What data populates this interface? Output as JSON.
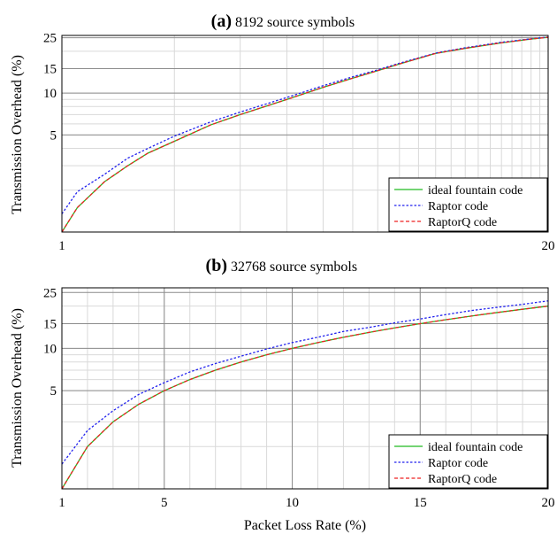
{
  "chart_data": [
    {
      "type": "line",
      "panel_label": "(a)",
      "title": "8192 source symbols",
      "xlabel": "",
      "ylabel": "Transmission Overhead (%)",
      "xscale": "log",
      "yscale": "log",
      "xlim": [
        1,
        20
      ],
      "ylim": [
        1,
        26
      ],
      "xticks": [
        1,
        20
      ],
      "yticks": [
        5,
        10,
        15,
        25
      ],
      "grid": true,
      "legend_position": "bottom-right",
      "x": [
        1,
        1.1,
        1.3,
        1.5,
        1.7,
        2,
        2.5,
        3,
        4,
        5,
        6,
        7,
        8,
        10,
        12,
        15,
        18,
        20
      ],
      "series": [
        {
          "name": "ideal fountain code",
          "color": "#22bb22",
          "dash": "solid",
          "values": [
            1.0,
            1.5,
            2.3,
            3.0,
            3.7,
            4.5,
            5.9,
            7.0,
            9.0,
            11.0,
            12.8,
            14.5,
            16.2,
            19.3,
            21.0,
            23.0,
            24.5,
            25.2
          ]
        },
        {
          "name": "Raptor code",
          "color": "#2222ee",
          "dash": "dotted",
          "values": [
            1.35,
            1.95,
            2.6,
            3.4,
            4.0,
            4.9,
            6.2,
            7.3,
            9.3,
            11.3,
            13.1,
            14.7,
            16.4,
            19.4,
            21.2,
            23.2,
            24.6,
            25.3
          ]
        },
        {
          "name": "RaptorQ code",
          "color": "#ee2222",
          "dash": "dashed",
          "values": [
            1.0,
            1.5,
            2.3,
            3.0,
            3.7,
            4.5,
            5.9,
            7.0,
            9.0,
            11.0,
            12.8,
            14.5,
            16.2,
            19.3,
            21.0,
            23.0,
            24.5,
            25.2
          ]
        }
      ]
    },
    {
      "type": "line",
      "panel_label": "(b)",
      "title": "32768 source symbols",
      "xlabel": "Packet Loss Rate (%)",
      "ylabel": "Transmission Overhead (%)",
      "xscale": "linear",
      "yscale": "log",
      "xlim": [
        1,
        20
      ],
      "ylim": [
        1,
        27
      ],
      "xticks": [
        1,
        5,
        10,
        15,
        20
      ],
      "yticks": [
        5,
        10,
        15,
        25
      ],
      "grid": true,
      "legend_position": "bottom-right",
      "x": [
        1,
        2,
        3,
        4,
        5,
        6,
        7,
        8,
        9,
        10,
        11,
        12,
        13,
        14,
        15,
        16,
        17,
        18,
        19,
        20
      ],
      "series": [
        {
          "name": "ideal fountain code",
          "color": "#22bb22",
          "dash": "solid",
          "values": [
            1.0,
            2.0,
            3.0,
            4.0,
            5.0,
            6.0,
            7.0,
            8.0,
            9.0,
            10.0,
            11.0,
            12.0,
            13.0,
            14.0,
            15.0,
            16.0,
            17.0,
            18.0,
            19.0,
            20.0
          ]
        },
        {
          "name": "Raptor code",
          "color": "#2222ee",
          "dash": "dotted",
          "values": [
            1.5,
            2.6,
            3.6,
            4.7,
            5.7,
            6.8,
            7.8,
            8.8,
            9.9,
            11.0,
            12.0,
            13.2,
            14.1,
            15.2,
            16.2,
            17.4,
            18.6,
            19.6,
            20.6,
            21.8
          ]
        },
        {
          "name": "RaptorQ code",
          "color": "#ee2222",
          "dash": "dashed",
          "values": [
            1.0,
            2.0,
            3.0,
            4.0,
            5.0,
            6.0,
            7.0,
            8.0,
            9.0,
            10.0,
            11.0,
            12.0,
            13.0,
            14.0,
            15.0,
            16.0,
            17.0,
            18.0,
            19.0,
            20.0
          ]
        }
      ]
    }
  ]
}
